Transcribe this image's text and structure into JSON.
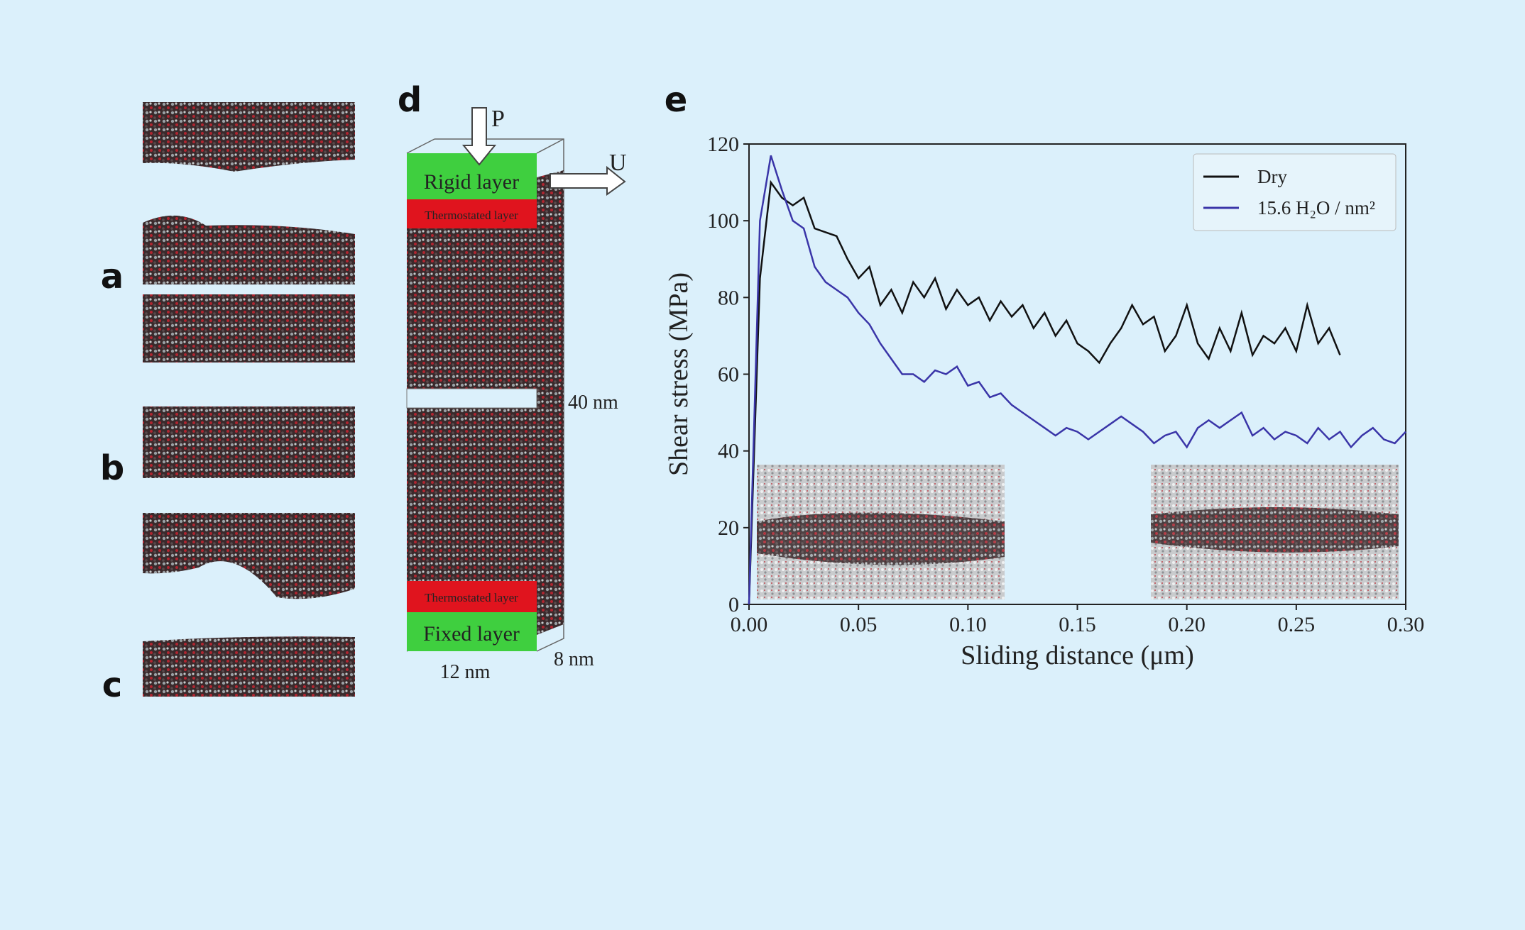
{
  "panels": {
    "labels": [
      "a",
      "b",
      "c",
      "d",
      "e"
    ]
  },
  "diagram": {
    "top_layer": "Rigid layer",
    "top_thermo": "Thermostated layer",
    "bottom_thermo": "Thermostated layer",
    "bottom_layer": "Fixed layer",
    "pressure": "P",
    "velocity": "U",
    "height": "40 nm",
    "width": "12 nm",
    "depth": "8 nm"
  },
  "chart_data": {
    "type": "line",
    "xlabel": "Sliding distance (μm)",
    "ylabel": "Shear stress (MPa)",
    "x": [
      0,
      0.005,
      0.01,
      0.015,
      0.02,
      0.025,
      0.03,
      0.035,
      0.04,
      0.045,
      0.05,
      0.055,
      0.06,
      0.065,
      0.07,
      0.075,
      0.08,
      0.085,
      0.09,
      0.095,
      0.1,
      0.105,
      0.11,
      0.115,
      0.12,
      0.125,
      0.13,
      0.135,
      0.14,
      0.145,
      0.15,
      0.155,
      0.16,
      0.165,
      0.17,
      0.175,
      0.18,
      0.185,
      0.19,
      0.195,
      0.2,
      0.205,
      0.21,
      0.215,
      0.22,
      0.225,
      0.23,
      0.235,
      0.24,
      0.245,
      0.25,
      0.255,
      0.26,
      0.265,
      0.27,
      0.275,
      0.28,
      0.285,
      0.29,
      0.295,
      0.3
    ],
    "series": [
      {
        "name": "Dry",
        "color": "#111111",
        "values": [
          0,
          85,
          110,
          106,
          104,
          106,
          98,
          97,
          96,
          90,
          85,
          88,
          78,
          82,
          76,
          84,
          80,
          85,
          77,
          82,
          78,
          80,
          74,
          79,
          75,
          78,
          72,
          76,
          70,
          74,
          68,
          66,
          63,
          68,
          72,
          78,
          73,
          75,
          66,
          70,
          78,
          68,
          64,
          72,
          66,
          76,
          65,
          70,
          68,
          72,
          66,
          78,
          68,
          72,
          65,
          null,
          null,
          null,
          null,
          null,
          null
        ]
      },
      {
        "name": "15.6 H₂O / nm²",
        "color": "#3a35a8",
        "values": [
          0,
          100,
          117,
          108,
          100,
          98,
          88,
          84,
          82,
          80,
          76,
          73,
          68,
          64,
          60,
          60,
          58,
          61,
          60,
          62,
          57,
          58,
          54,
          55,
          52,
          50,
          48,
          46,
          44,
          46,
          45,
          43,
          45,
          47,
          49,
          47,
          45,
          42,
          44,
          45,
          41,
          46,
          48,
          46,
          48,
          50,
          44,
          46,
          43,
          45,
          44,
          42,
          46,
          43,
          45,
          41,
          44,
          46,
          43,
          42,
          45
        ]
      }
    ],
    "xlim": [
      0,
      0.3
    ],
    "ylim": [
      0,
      120
    ],
    "xticks": [
      {
        "value": 0,
        "label": "0.00"
      },
      {
        "value": 0.05,
        "label": "0.05"
      },
      {
        "value": 0.1,
        "label": "0.10"
      },
      {
        "value": 0.15,
        "label": "0.15"
      },
      {
        "value": 0.2,
        "label": "0.20"
      },
      {
        "value": 0.25,
        "label": "0.25"
      },
      {
        "value": 0.3,
        "label": "0.30"
      }
    ],
    "yticks": [
      0,
      20,
      40,
      60,
      80,
      100,
      120
    ],
    "legend": "upper right",
    "grid": false
  }
}
